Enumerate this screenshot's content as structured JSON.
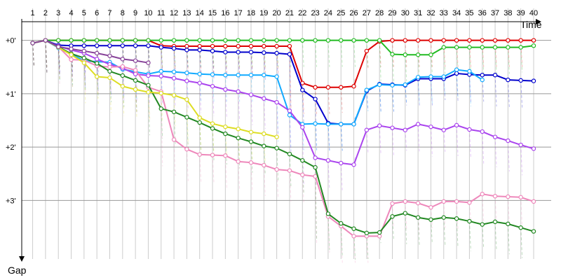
{
  "chart_data": {
    "type": "line",
    "xlabel": "Time",
    "ylabel": "Gap",
    "laps": [
      1,
      2,
      3,
      4,
      5,
      6,
      7,
      8,
      9,
      10,
      11,
      12,
      13,
      14,
      15,
      16,
      17,
      18,
      19,
      20,
      21,
      22,
      23,
      24,
      25,
      26,
      27,
      28,
      29,
      30,
      31,
      32,
      33,
      34,
      35,
      36,
      37,
      38,
      39,
      40
    ],
    "y_ticks": [
      {
        "value": 0,
        "label": "+0'"
      },
      {
        "value": 1,
        "label": "+1'"
      },
      {
        "value": 2,
        "label": "+2'"
      },
      {
        "value": 3,
        "label": "+3'"
      }
    ],
    "ylim": [
      -0.35,
      4.15
    ],
    "xlim": [
      0.15,
      40.6
    ],
    "series": [
      {
        "color": "#dd0000",
        "values": [
          0.05,
          0,
          0,
          0,
          0,
          0,
          0,
          0,
          0,
          0,
          0.1,
          0.11,
          0.11,
          0.11,
          0.11,
          0.11,
          0.11,
          0.11,
          0.11,
          0.11,
          0.11,
          0.8,
          0.88,
          0.88,
          0.88,
          0.86,
          0.2,
          0.02,
          0,
          0,
          0,
          0,
          0,
          0,
          0,
          0,
          0,
          0,
          0,
          0
        ]
      },
      {
        "color": "#22bb22",
        "values": [
          0.05,
          0,
          0,
          0,
          0,
          0,
          0,
          0,
          0,
          0,
          0,
          0,
          0,
          0,
          0,
          0,
          0,
          0,
          0,
          0,
          0,
          0,
          0,
          0,
          0,
          0,
          0,
          0,
          0.26,
          0.27,
          0.27,
          0.27,
          0.13,
          0.13,
          0.13,
          0.13,
          0.13,
          0.13,
          0.13,
          0.1
        ]
      },
      {
        "color": "#0000cc",
        "values": [
          0.05,
          0,
          0.09,
          0.1,
          0.1,
          0.1,
          0.1,
          0.1,
          0.1,
          0.1,
          0.13,
          0.15,
          0.18,
          0.18,
          0.2,
          0.22,
          0.22,
          0.22,
          0.23,
          0.24,
          0.26,
          0.93,
          1.1,
          1.55,
          1.57,
          1.57,
          0.95,
          0.82,
          0.83,
          0.84,
          0.72,
          0.72,
          0.72,
          0.62,
          0.64,
          0.65,
          0.65,
          0.74,
          0.75,
          0.76
        ]
      },
      {
        "color": "#11aaff",
        "values": [
          0.05,
          0,
          0.14,
          0.26,
          0.38,
          0.4,
          0.41,
          0.54,
          0.59,
          0.63,
          0.58,
          0.59,
          0.61,
          0.63,
          0.64,
          0.65,
          0.65,
          0.65,
          0.65,
          0.68,
          1.4,
          1.57,
          1.56,
          1.57,
          1.57,
          1.57,
          0.93,
          0.83,
          0.84,
          0.83,
          0.69,
          0.68,
          0.68,
          0.55,
          0.58,
          0.74
        ]
      },
      {
        "color": "#aa44ee",
        "values": [
          0.05,
          0,
          0.11,
          0.18,
          0.24,
          0.35,
          0.45,
          0.52,
          0.63,
          0.66,
          0.67,
          0.71,
          0.76,
          0.8,
          0.86,
          0.92,
          0.96,
          1.02,
          1.09,
          1.16,
          1.32,
          1.63,
          2.2,
          2.25,
          2.3,
          2.33,
          1.68,
          1.6,
          1.64,
          1.68,
          1.57,
          1.62,
          1.68,
          1.59,
          1.67,
          1.71,
          1.81,
          1.88,
          1.96,
          2.03
        ]
      },
      {
        "color": "#ee88bb",
        "values": [
          0.05,
          0,
          0.12,
          0.36,
          0.37,
          0.48,
          0.5,
          0.49,
          0.56,
          0.88,
          0.96,
          1.86,
          2.04,
          2.14,
          2.15,
          2.16,
          2.27,
          2.29,
          2.34,
          2.42,
          2.44,
          2.52,
          2.55,
          3.3,
          3.48,
          3.67,
          3.67,
          3.67,
          3.06,
          3.02,
          3.05,
          3.13,
          3.02,
          3.02,
          3.04,
          2.88,
          2.92,
          2.93,
          2.94,
          3.02
        ]
      },
      {
        "color": "#228822",
        "values": [
          0.05,
          0,
          0.12,
          0.25,
          0.33,
          0.43,
          0.58,
          0.66,
          0.75,
          0.84,
          1.28,
          1.34,
          1.44,
          1.54,
          1.65,
          1.75,
          1.83,
          1.9,
          1.98,
          2.02,
          2.13,
          2.25,
          2.38,
          3.25,
          3.43,
          3.53,
          3.61,
          3.6,
          3.3,
          3.24,
          3.32,
          3.36,
          3.32,
          3.34,
          3.39,
          3.45,
          3.4,
          3.44,
          3.51,
          3.58
        ]
      },
      {
        "color": "#dddd22",
        "values": [
          0.05,
          0,
          0.13,
          0.27,
          0.42,
          0.68,
          0.7,
          0.86,
          0.92,
          0.97,
          0.99,
          1.03,
          1.11,
          1.45,
          1.56,
          1.62,
          1.66,
          1.72,
          1.75,
          1.81
        ]
      },
      {
        "color": "#884499",
        "values": [
          0.05,
          0,
          0.12,
          0.16,
          0.2,
          0.24,
          0.29,
          0.35,
          0.38,
          0.42
        ]
      }
    ]
  }
}
